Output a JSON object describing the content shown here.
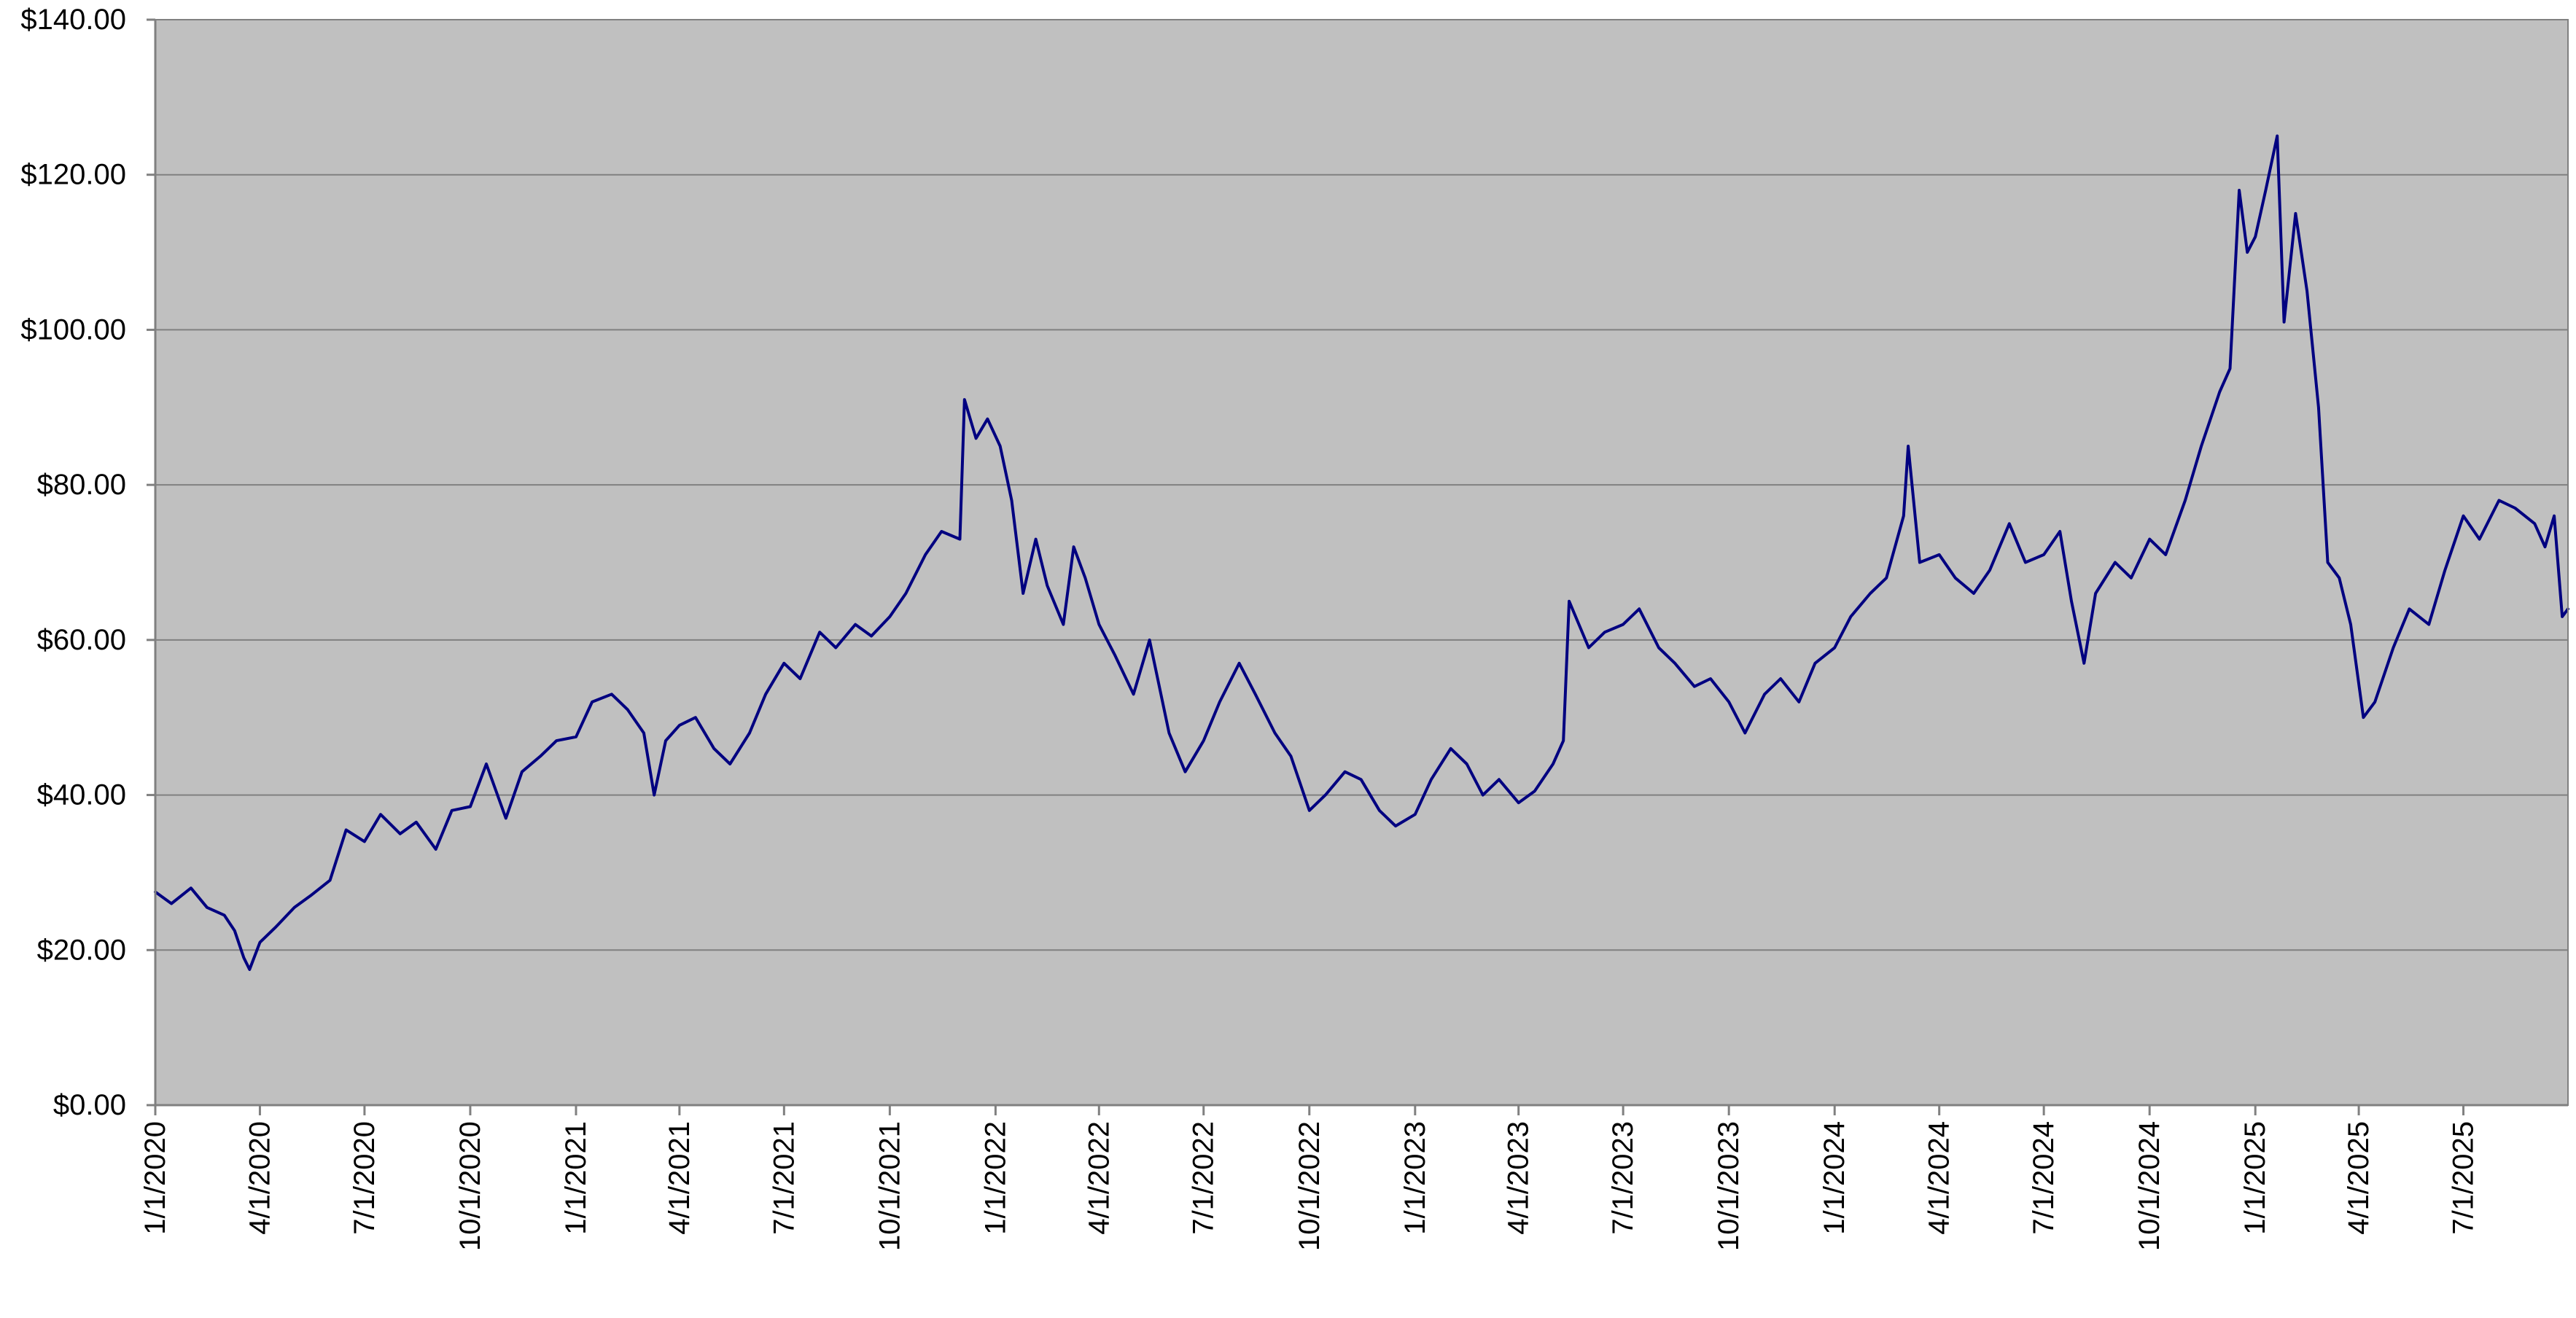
{
  "colors": {
    "plot_background": "#c0c0c0",
    "gridline": "#808080",
    "series_line": "#000080",
    "axis": "#808080",
    "text": "#000000"
  },
  "chart_data": {
    "type": "line",
    "title": "",
    "xlabel": "",
    "ylabel": "",
    "legend": "none",
    "grid": true,
    "ylim": [
      0,
      140
    ],
    "xlim": [
      "2020-01-01",
      "2025-09-30"
    ],
    "y_ticks": [
      0,
      20,
      40,
      60,
      80,
      100,
      120,
      140
    ],
    "y_tick_labels": [
      "$0.00",
      "$20.00",
      "$40.00",
      "$60.00",
      "$80.00",
      "$100.00",
      "$120.00",
      "$140.00"
    ],
    "x_ticks": [
      "2020-01-01",
      "2020-04-01",
      "2020-07-01",
      "2020-10-01",
      "2021-01-01",
      "2021-04-01",
      "2021-07-01",
      "2021-10-01",
      "2022-01-01",
      "2022-04-01",
      "2022-07-01",
      "2022-10-01",
      "2023-01-01",
      "2023-04-01",
      "2023-07-01",
      "2023-10-01",
      "2024-01-01",
      "2024-04-01",
      "2024-07-01",
      "2024-10-01",
      "2025-01-01",
      "2025-04-01",
      "2025-07-01"
    ],
    "x_tick_labels": [
      "1/1/2020",
      "4/1/2020",
      "7/1/2020",
      "10/1/2020",
      "1/1/2021",
      "4/1/2021",
      "7/1/2021",
      "10/1/2021",
      "1/1/2022",
      "4/1/2022",
      "7/1/2022",
      "10/1/2022",
      "1/1/2023",
      "4/1/2023",
      "7/1/2023",
      "10/1/2023",
      "1/1/2024",
      "4/1/2024",
      "7/1/2024",
      "10/1/2024",
      "1/1/2025",
      "4/1/2025",
      "7/1/2025"
    ],
    "series": [
      {
        "color": "#000080",
        "points": [
          [
            "2020-01-01",
            27.5
          ],
          [
            "2020-01-15",
            26.0
          ],
          [
            "2020-02-01",
            28.0
          ],
          [
            "2020-02-15",
            25.5
          ],
          [
            "2020-03-01",
            24.5
          ],
          [
            "2020-03-10",
            22.5
          ],
          [
            "2020-03-18",
            19.0
          ],
          [
            "2020-03-23",
            17.5
          ],
          [
            "2020-04-01",
            21.0
          ],
          [
            "2020-04-15",
            23.0
          ],
          [
            "2020-05-01",
            25.5
          ],
          [
            "2020-05-15",
            27.0
          ],
          [
            "2020-06-01",
            29.0
          ],
          [
            "2020-06-15",
            35.5
          ],
          [
            "2020-07-01",
            34.0
          ],
          [
            "2020-07-15",
            37.5
          ],
          [
            "2020-08-01",
            35.0
          ],
          [
            "2020-08-15",
            36.5
          ],
          [
            "2020-09-01",
            33.0
          ],
          [
            "2020-09-15",
            38.0
          ],
          [
            "2020-10-01",
            38.5
          ],
          [
            "2020-10-15",
            44.0
          ],
          [
            "2020-11-01",
            37.0
          ],
          [
            "2020-11-15",
            43.0
          ],
          [
            "2020-12-01",
            45.0
          ],
          [
            "2020-12-15",
            47.0
          ],
          [
            "2021-01-01",
            47.5
          ],
          [
            "2021-01-15",
            52.0
          ],
          [
            "2021-02-01",
            53.0
          ],
          [
            "2021-02-15",
            51.0
          ],
          [
            "2021-03-01",
            48.0
          ],
          [
            "2021-03-10",
            40.0
          ],
          [
            "2021-03-20",
            47.0
          ],
          [
            "2021-04-01",
            49.0
          ],
          [
            "2021-04-15",
            50.0
          ],
          [
            "2021-05-01",
            46.0
          ],
          [
            "2021-05-15",
            44.0
          ],
          [
            "2021-06-01",
            48.0
          ],
          [
            "2021-06-15",
            53.0
          ],
          [
            "2021-07-01",
            57.0
          ],
          [
            "2021-07-15",
            55.0
          ],
          [
            "2021-08-01",
            61.0
          ],
          [
            "2021-08-15",
            59.0
          ],
          [
            "2021-09-01",
            62.0
          ],
          [
            "2021-09-15",
            60.5
          ],
          [
            "2021-10-01",
            63.0
          ],
          [
            "2021-10-15",
            66.0
          ],
          [
            "2021-11-01",
            71.0
          ],
          [
            "2021-11-15",
            74.0
          ],
          [
            "2021-12-01",
            73.0
          ],
          [
            "2021-12-05",
            91.0
          ],
          [
            "2021-12-15",
            86.0
          ],
          [
            "2021-12-25",
            88.5
          ],
          [
            "2022-01-05",
            85.0
          ],
          [
            "2022-01-15",
            78.0
          ],
          [
            "2022-01-25",
            66.0
          ],
          [
            "2022-02-05",
            73.0
          ],
          [
            "2022-02-15",
            67.0
          ],
          [
            "2022-03-01",
            62.0
          ],
          [
            "2022-03-10",
            72.0
          ],
          [
            "2022-03-20",
            68.0
          ],
          [
            "2022-04-01",
            62.0
          ],
          [
            "2022-04-15",
            58.0
          ],
          [
            "2022-05-01",
            53.0
          ],
          [
            "2022-05-15",
            60.0
          ],
          [
            "2022-06-01",
            48.0
          ],
          [
            "2022-06-15",
            43.0
          ],
          [
            "2022-07-01",
            47.0
          ],
          [
            "2022-07-15",
            52.0
          ],
          [
            "2022-08-01",
            57.0
          ],
          [
            "2022-08-15",
            53.0
          ],
          [
            "2022-09-01",
            48.0
          ],
          [
            "2022-09-15",
            45.0
          ],
          [
            "2022-10-01",
            38.0
          ],
          [
            "2022-10-15",
            40.0
          ],
          [
            "2022-11-01",
            43.0
          ],
          [
            "2022-11-15",
            42.0
          ],
          [
            "2022-12-01",
            38.0
          ],
          [
            "2022-12-15",
            36.0
          ],
          [
            "2023-01-01",
            37.5
          ],
          [
            "2023-01-15",
            42.0
          ],
          [
            "2023-02-01",
            46.0
          ],
          [
            "2023-02-15",
            44.0
          ],
          [
            "2023-03-01",
            40.0
          ],
          [
            "2023-03-15",
            42.0
          ],
          [
            "2023-04-01",
            39.0
          ],
          [
            "2023-04-15",
            40.5
          ],
          [
            "2023-05-01",
            44.0
          ],
          [
            "2023-05-10",
            47.0
          ],
          [
            "2023-05-15",
            65.0
          ],
          [
            "2023-06-01",
            59.0
          ],
          [
            "2023-06-15",
            61.0
          ],
          [
            "2023-07-01",
            62.0
          ],
          [
            "2023-07-15",
            64.0
          ],
          [
            "2023-08-01",
            59.0
          ],
          [
            "2023-08-15",
            57.0
          ],
          [
            "2023-09-01",
            54.0
          ],
          [
            "2023-09-15",
            55.0
          ],
          [
            "2023-10-01",
            52.0
          ],
          [
            "2023-10-15",
            48.0
          ],
          [
            "2023-11-01",
            53.0
          ],
          [
            "2023-11-15",
            55.0
          ],
          [
            "2023-12-01",
            52.0
          ],
          [
            "2023-12-15",
            57.0
          ],
          [
            "2024-01-01",
            59.0
          ],
          [
            "2024-01-15",
            63.0
          ],
          [
            "2024-02-01",
            66.0
          ],
          [
            "2024-02-15",
            68.0
          ],
          [
            "2024-03-01",
            76.0
          ],
          [
            "2024-03-05",
            85.0
          ],
          [
            "2024-03-15",
            70.0
          ],
          [
            "2024-04-01",
            71.0
          ],
          [
            "2024-04-15",
            68.0
          ],
          [
            "2024-05-01",
            66.0
          ],
          [
            "2024-05-15",
            69.0
          ],
          [
            "2024-06-01",
            75.0
          ],
          [
            "2024-06-15",
            70.0
          ],
          [
            "2024-07-01",
            71.0
          ],
          [
            "2024-07-15",
            74.0
          ],
          [
            "2024-07-25",
            65.0
          ],
          [
            "2024-08-05",
            57.0
          ],
          [
            "2024-08-15",
            66.0
          ],
          [
            "2024-09-01",
            70.0
          ],
          [
            "2024-09-15",
            68.0
          ],
          [
            "2024-10-01",
            73.0
          ],
          [
            "2024-10-15",
            71.0
          ],
          [
            "2024-11-01",
            78.0
          ],
          [
            "2024-11-15",
            85.0
          ],
          [
            "2024-12-01",
            92.0
          ],
          [
            "2024-12-10",
            95.0
          ],
          [
            "2024-12-18",
            118.0
          ],
          [
            "2024-12-25",
            110.0
          ],
          [
            "2025-01-01",
            112.0
          ],
          [
            "2025-01-10",
            118.0
          ],
          [
            "2025-01-20",
            125.0
          ],
          [
            "2025-01-26",
            101.0
          ],
          [
            "2025-02-05",
            115.0
          ],
          [
            "2025-02-15",
            105.0
          ],
          [
            "2025-02-25",
            90.0
          ],
          [
            "2025-03-05",
            70.0
          ],
          [
            "2025-03-15",
            68.0
          ],
          [
            "2025-03-25",
            62.0
          ],
          [
            "2025-04-05",
            50.0
          ],
          [
            "2025-04-15",
            52.0
          ],
          [
            "2025-05-01",
            59.0
          ],
          [
            "2025-05-15",
            64.0
          ],
          [
            "2025-06-01",
            62.0
          ],
          [
            "2025-06-15",
            69.0
          ],
          [
            "2025-07-01",
            76.0
          ],
          [
            "2025-07-15",
            73.0
          ],
          [
            "2025-08-01",
            78.0
          ],
          [
            "2025-08-15",
            77.0
          ],
          [
            "2025-09-01",
            75.0
          ],
          [
            "2025-09-10",
            72.0
          ],
          [
            "2025-09-18",
            76.0
          ],
          [
            "2025-09-25",
            63.0
          ],
          [
            "2025-09-30",
            64.0
          ]
        ]
      }
    ]
  }
}
